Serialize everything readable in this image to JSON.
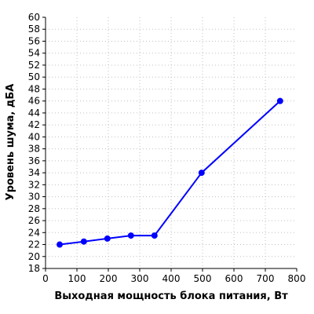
{
  "chart_data": {
    "type": "line",
    "title": "",
    "xlabel": "Выходная мощность блока питания, Вт",
    "ylabel": "Уровень шума, дБА",
    "xlim": [
      0,
      800
    ],
    "ylim": [
      18,
      60
    ],
    "x_ticks": [
      0,
      100,
      200,
      300,
      400,
      500,
      600,
      700,
      800
    ],
    "y_ticks": [
      18,
      20,
      22,
      24,
      26,
      28,
      30,
      32,
      34,
      36,
      38,
      40,
      42,
      44,
      46,
      48,
      50,
      52,
      54,
      56,
      58,
      60
    ],
    "grid": true,
    "grid_style": "dotted",
    "series": [
      {
        "x": [
          45,
          122,
          197,
          272,
          347,
          497,
          747
        ],
        "y": [
          22.0,
          22.5,
          23.0,
          23.5,
          23.5,
          34.0,
          46.0
        ],
        "color": "#0000ff"
      }
    ]
  }
}
